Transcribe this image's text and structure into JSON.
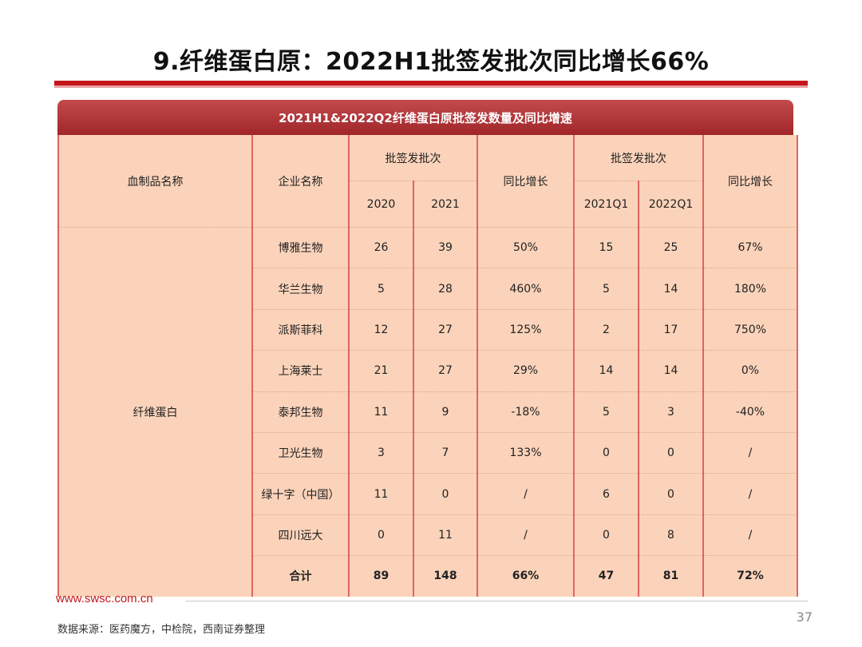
{
  "title": "9.纤维蛋白原：2022H1批签发批次同比增长66%",
  "table_title": "2021H1&2022Q2纤维蛋白原批签发数量及同比增速",
  "headers": {
    "product": "血制品名称",
    "company": "企业名称",
    "batches": "批签发批次",
    "yoy": "同比增长",
    "y2020": "2020",
    "y2021": "2021",
    "q2021": "2021Q1",
    "q2022": "2022Q1"
  },
  "product_name": "纤维蛋白",
  "rows": [
    {
      "company": "博雅生物",
      "v2020": "26",
      "v2021": "39",
      "yoy1": "50%",
      "q2021": "15",
      "q2022": "25",
      "yoy2": "67%"
    },
    {
      "company": "华兰生物",
      "v2020": "5",
      "v2021": "28",
      "yoy1": "460%",
      "q2021": "5",
      "q2022": "14",
      "yoy2": "180%"
    },
    {
      "company": "派斯菲科",
      "v2020": "12",
      "v2021": "27",
      "yoy1": "125%",
      "q2021": "2",
      "q2022": "17",
      "yoy2": "750%"
    },
    {
      "company": "上海莱士",
      "v2020": "21",
      "v2021": "27",
      "yoy1": "29%",
      "q2021": "14",
      "q2022": "14",
      "yoy2": "0%"
    },
    {
      "company": "泰邦生物",
      "v2020": "11",
      "v2021": "9",
      "yoy1": "-18%",
      "q2021": "5",
      "q2022": "3",
      "yoy2": "-40%"
    },
    {
      "company": "卫光生物",
      "v2020": "3",
      "v2021": "7",
      "yoy1": "133%",
      "q2021": "0",
      "q2022": "0",
      "yoy2": "/"
    },
    {
      "company": "绿十字（中国）",
      "v2020": "11",
      "v2021": "0",
      "yoy1": "/",
      "q2021": "6",
      "q2022": "0",
      "yoy2": "/"
    },
    {
      "company": "四川远大",
      "v2020": "0",
      "v2021": "11",
      "yoy1": "/",
      "q2021": "0",
      "q2022": "8",
      "yoy2": "/"
    }
  ],
  "total": {
    "company": "合计",
    "v2020": "89",
    "v2021": "148",
    "yoy1": "66%",
    "q2021": "47",
    "q2022": "81",
    "yoy2": "72%"
  },
  "footer": {
    "url": "www.swsc.com.cn",
    "page": "37",
    "source": "数据来源：医药魔方，中检院，西南证券整理"
  },
  "colors": {
    "accent": "#c4161c",
    "header_bar": "#a0262a",
    "cell_bg": "#fbd3ba",
    "grid_line": "#e0655f"
  }
}
